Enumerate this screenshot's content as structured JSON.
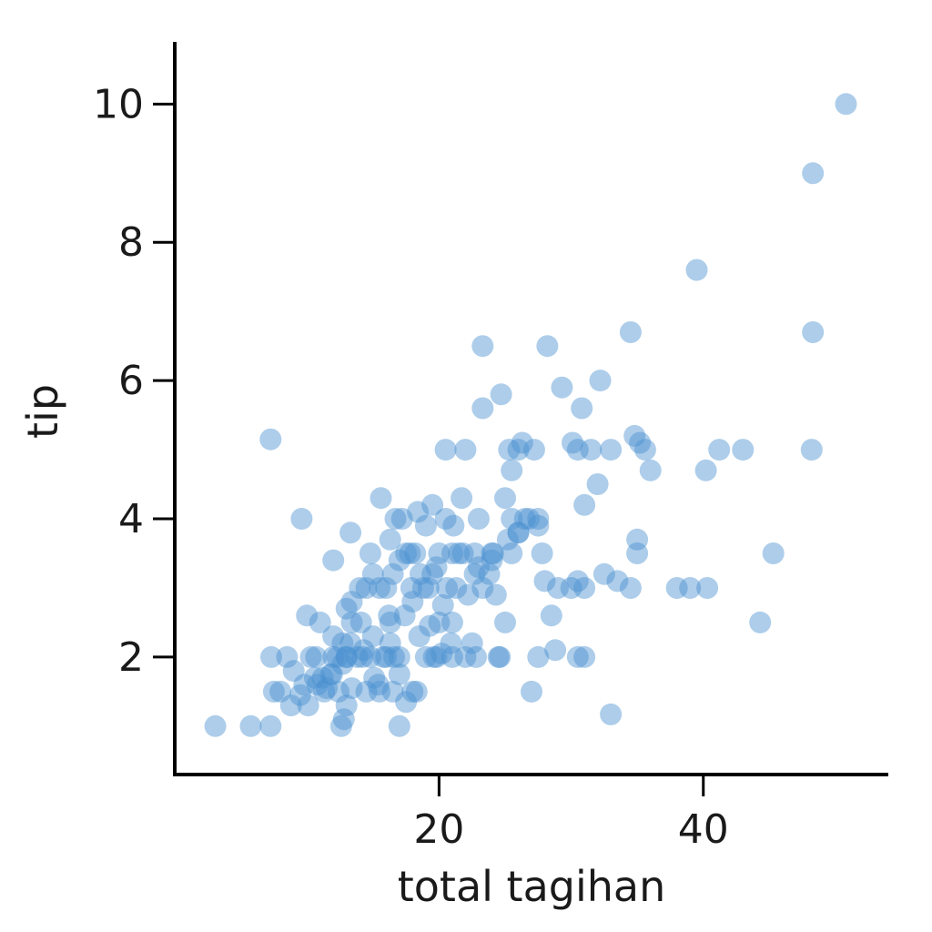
{
  "chart_data": {
    "type": "scatter",
    "title": "",
    "xlabel": "total tagihan",
    "ylabel": "tip",
    "xlim": [
      0,
      54
    ],
    "ylim": [
      0.3,
      10.9
    ],
    "x_ticks": [
      20,
      40
    ],
    "y_ticks": [
      2,
      4,
      6,
      8,
      10
    ],
    "x_tick_labels": [
      "20",
      "40"
    ],
    "y_tick_labels": [
      "2",
      "4",
      "6",
      "8",
      "10"
    ],
    "grid": false,
    "legend": "none",
    "point_color": "#4a90d0",
    "series": [
      {
        "points": [
          [
            3.07,
            1.0
          ],
          [
            5.75,
            1.0
          ],
          [
            7.25,
            1.0
          ],
          [
            12.6,
            1.0
          ],
          [
            17.0,
            1.0
          ],
          [
            7.25,
            5.15
          ],
          [
            9.6,
            4.0
          ],
          [
            10.0,
            2.6
          ],
          [
            11.0,
            2.5
          ],
          [
            12.0,
            2.3
          ],
          [
            7.3,
            2.0
          ],
          [
            8.5,
            2.0
          ],
          [
            9.0,
            1.8
          ],
          [
            10.3,
            2.0
          ],
          [
            10.6,
            1.7
          ],
          [
            11.3,
            1.5
          ],
          [
            11.8,
            1.75
          ],
          [
            12.3,
            2.0
          ],
          [
            12.7,
            1.9
          ],
          [
            13.0,
            2.0
          ],
          [
            13.4,
            2.5
          ],
          [
            13.8,
            2.0
          ],
          [
            14.3,
            2.1
          ],
          [
            14.8,
            2.0
          ],
          [
            15.1,
            1.7
          ],
          [
            15.4,
            1.6
          ],
          [
            16.0,
            2.0
          ],
          [
            16.3,
            2.2
          ],
          [
            16.6,
            2.0
          ],
          [
            17.0,
            1.75
          ],
          [
            7.5,
            1.5
          ],
          [
            8.0,
            1.5
          ],
          [
            8.8,
            1.3
          ],
          [
            9.5,
            1.45
          ],
          [
            10.1,
            1.3
          ],
          [
            10.8,
            1.6
          ],
          [
            11.5,
            1.55
          ],
          [
            12.8,
            1.1
          ],
          [
            13.4,
            1.55
          ],
          [
            15.5,
            1.5
          ],
          [
            17.5,
            1.35
          ],
          [
            18.3,
            1.5
          ],
          [
            13.0,
            2.7
          ],
          [
            13.4,
            2.8
          ],
          [
            14.1,
            2.5
          ],
          [
            14.5,
            3.0
          ],
          [
            15.0,
            3.2
          ],
          [
            15.5,
            3.0
          ],
          [
            16.0,
            3.0
          ],
          [
            16.3,
            2.5
          ],
          [
            16.5,
            3.2
          ],
          [
            17.0,
            3.4
          ],
          [
            17.5,
            3.5
          ],
          [
            17.9,
            3.0
          ],
          [
            18.2,
            3.5
          ],
          [
            18.5,
            2.3
          ],
          [
            18.8,
            3.0
          ],
          [
            19.2,
            3.0
          ],
          [
            19.5,
            3.2
          ],
          [
            19.8,
            2.0
          ],
          [
            20.0,
            2.5
          ],
          [
            20.3,
            2.75
          ],
          [
            20.6,
            3.0
          ],
          [
            20.9,
            2.2
          ],
          [
            21.0,
            3.5
          ],
          [
            21.3,
            3.0
          ],
          [
            21.8,
            3.5
          ],
          [
            22.2,
            2.9
          ],
          [
            22.7,
            3.5
          ],
          [
            23.0,
            3.3
          ],
          [
            23.3,
            3.0
          ],
          [
            23.8,
            3.2
          ],
          [
            24.1,
            3.5
          ],
          [
            24.6,
            2.0
          ],
          [
            25.2,
            3.7
          ],
          [
            25.5,
            3.5
          ],
          [
            26.0,
            3.8
          ],
          [
            26.5,
            4.0
          ],
          [
            24.5,
            2.0
          ],
          [
            22.5,
            2.2
          ],
          [
            22.0,
            2.0
          ],
          [
            21.0,
            2.0
          ],
          [
            20.2,
            2.05
          ],
          [
            19.6,
            2.0
          ],
          [
            19.0,
            2.0
          ],
          [
            13.0,
            2.0
          ],
          [
            12.0,
            2.0
          ],
          [
            12.7,
            2.2
          ],
          [
            11.2,
            1.7
          ],
          [
            10.7,
            2.0
          ],
          [
            14.2,
            2.0
          ],
          [
            15.8,
            2.0
          ],
          [
            14.0,
            3.0
          ],
          [
            13.3,
            3.8
          ],
          [
            12.0,
            3.4
          ],
          [
            14.8,
            3.5
          ],
          [
            16.3,
            3.7
          ],
          [
            17.2,
            4.0
          ],
          [
            17.8,
            3.5
          ],
          [
            18.4,
            4.1
          ],
          [
            19.0,
            3.9
          ],
          [
            19.5,
            4.2
          ],
          [
            20.5,
            4.0
          ],
          [
            21.1,
            3.9
          ],
          [
            21.7,
            4.3
          ],
          [
            23.0,
            4.0
          ],
          [
            25.0,
            4.3
          ],
          [
            25.5,
            4.0
          ],
          [
            26.3,
            5.1
          ],
          [
            27.2,
            5.0
          ],
          [
            27.5,
            3.9
          ],
          [
            27.8,
            3.5
          ],
          [
            28.0,
            3.1
          ],
          [
            29.0,
            3.0
          ],
          [
            30.0,
            3.0
          ],
          [
            30.5,
            3.1
          ],
          [
            31.0,
            3.0
          ],
          [
            32.5,
            3.2
          ],
          [
            33.5,
            3.1
          ],
          [
            34.5,
            3.0
          ],
          [
            35.0,
            3.5
          ],
          [
            35.0,
            3.7
          ],
          [
            34.8,
            5.2
          ],
          [
            35.2,
            5.1
          ],
          [
            35.6,
            5.0
          ],
          [
            36.0,
            4.7
          ],
          [
            32.0,
            4.5
          ],
          [
            31.5,
            5.0
          ],
          [
            30.1,
            5.1
          ],
          [
            30.5,
            5.0
          ],
          [
            33.0,
            5.0
          ],
          [
            31.0,
            4.2
          ],
          [
            30.8,
            5.6
          ],
          [
            29.3,
            5.9
          ],
          [
            32.2,
            6.0
          ],
          [
            34.5,
            6.7
          ],
          [
            28.2,
            6.5
          ],
          [
            23.3,
            6.5
          ],
          [
            23.3,
            5.6
          ],
          [
            24.7,
            5.8
          ],
          [
            25.3,
            5.0
          ],
          [
            25.5,
            4.7
          ],
          [
            26.0,
            5.0
          ],
          [
            22.0,
            5.0
          ],
          [
            20.5,
            5.0
          ],
          [
            24.0,
            3.5
          ],
          [
            24.3,
            2.9
          ],
          [
            25.0,
            2.5
          ],
          [
            27.5,
            2.0
          ],
          [
            28.8,
            2.1
          ],
          [
            30.5,
            2.0
          ],
          [
            31.0,
            2.0
          ],
          [
            28.5,
            2.6
          ],
          [
            27.0,
            1.5
          ],
          [
            33.0,
            1.17
          ],
          [
            38.0,
            3.0
          ],
          [
            39.0,
            3.0
          ],
          [
            40.3,
            3.0
          ],
          [
            39.5,
            7.6
          ],
          [
            40.2,
            4.7
          ],
          [
            41.2,
            5.0
          ],
          [
            43.0,
            5.0
          ],
          [
            45.3,
            3.5
          ],
          [
            44.3,
            2.5
          ],
          [
            48.3,
            6.7
          ],
          [
            48.2,
            5.0
          ],
          [
            48.3,
            9.0
          ],
          [
            50.8,
            10.0
          ],
          [
            15.6,
            4.3
          ],
          [
            16.7,
            4.0
          ],
          [
            18.0,
            2.8
          ],
          [
            17.4,
            2.6
          ],
          [
            16.2,
            2.6
          ],
          [
            15.0,
            2.3
          ],
          [
            13.3,
            2.2
          ],
          [
            11.9,
            1.75
          ],
          [
            12.4,
            1.5
          ],
          [
            19.3,
            2.45
          ],
          [
            21.0,
            2.5
          ],
          [
            18.6,
            3.2
          ],
          [
            20.0,
            3.5
          ],
          [
            21.5,
            3.5
          ],
          [
            22.7,
            3.2
          ],
          [
            19.8,
            3.3
          ],
          [
            17.0,
            2.0
          ],
          [
            18.0,
            1.5
          ],
          [
            16.5,
            1.5
          ],
          [
            14.5,
            1.5
          ],
          [
            13.0,
            1.3
          ],
          [
            9.8,
            1.6
          ],
          [
            22.8,
            2.0
          ],
          [
            24.0,
            3.4
          ],
          [
            26.8,
            4.0
          ],
          [
            27.5,
            4.0
          ],
          [
            26.0,
            3.8
          ]
        ]
      }
    ]
  }
}
